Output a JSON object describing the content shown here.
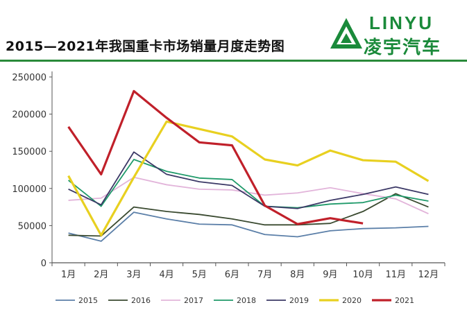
{
  "header": {
    "title": "2015—2021年我国重卡市场销量月度走势图",
    "logo_en": "LINYU",
    "logo_cn": "凌宇汽车",
    "brand_color": "#1a8a3a"
  },
  "chart_data": {
    "type": "line",
    "title": "2015—2021年我国重卡市场销量月度走势图",
    "xlabel": "",
    "ylabel": "",
    "categories": [
      "1月",
      "2月",
      "3月",
      "4月",
      "5月",
      "6月",
      "7月",
      "8月",
      "9月",
      "10月",
      "11月",
      "12月"
    ],
    "ylim": [
      0,
      250000
    ],
    "yticks": [
      "0",
      "50000",
      "100000",
      "150000",
      "200000",
      "250000"
    ],
    "grid": false,
    "legend_position": "bottom",
    "series": [
      {
        "name": "2015",
        "color": "#5b7fa8",
        "values": [
          40000,
          29000,
          68000,
          59000,
          52000,
          51000,
          38000,
          35000,
          43000,
          46000,
          47000,
          49000
        ]
      },
      {
        "name": "2016",
        "color": "#3a4a30",
        "values": [
          37000,
          36000,
          75000,
          69000,
          65000,
          59000,
          51000,
          51000,
          53000,
          69000,
          93000,
          75000
        ]
      },
      {
        "name": "2017",
        "color": "#e2b4da",
        "values": [
          84000,
          87000,
          115000,
          105000,
          99000,
          98000,
          91000,
          94000,
          101000,
          93000,
          86000,
          66000
        ]
      },
      {
        "name": "2018",
        "color": "#1f9a6a",
        "values": [
          111000,
          76000,
          139000,
          123000,
          114000,
          112000,
          76000,
          74000,
          79000,
          81000,
          91000,
          83000
        ]
      },
      {
        "name": "2019",
        "color": "#3b3866",
        "values": [
          99000,
          78000,
          149000,
          119000,
          109000,
          104000,
          76000,
          73000,
          84000,
          92000,
          102000,
          92000
        ]
      },
      {
        "name": "2020",
        "color": "#e8d020",
        "values": [
          117000,
          37000,
          115000,
          190000,
          180000,
          170000,
          139000,
          131000,
          151000,
          138000,
          136000,
          110000
        ]
      },
      {
        "name": "2021",
        "color": "#c0202a",
        "values": [
          183000,
          119000,
          231000,
          195000,
          162000,
          158000,
          77000,
          52000,
          60000,
          53000,
          null,
          null
        ]
      }
    ]
  }
}
